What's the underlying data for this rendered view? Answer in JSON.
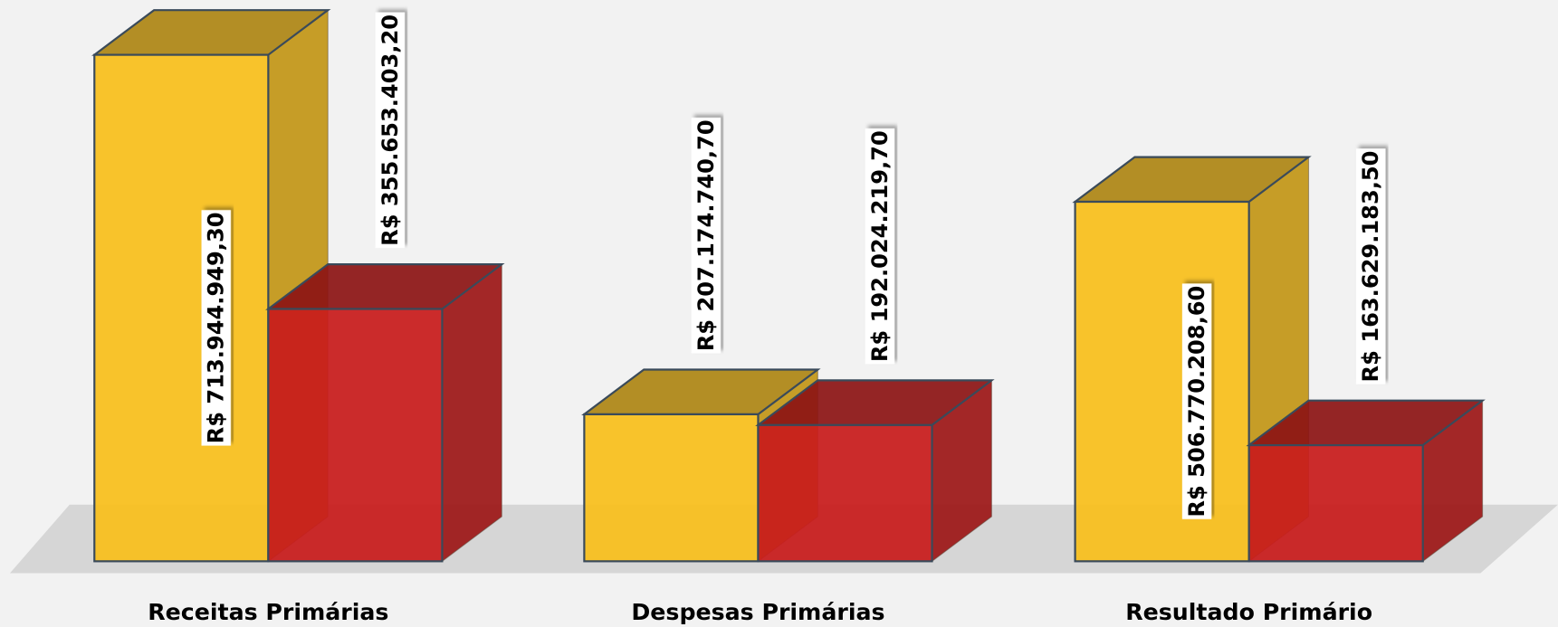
{
  "chart_data": {
    "type": "bar3d",
    "categories": [
      "Receitas Primárias",
      "Despesas Primárias",
      "Resultado Primário"
    ],
    "series": [
      {
        "color": "#f9c01c",
        "values": [
          713944949.3,
          207174740.7,
          506770208.6
        ],
        "value_labels": [
          "R$ 713.944.949,30",
          "R$ 207.174.740,70",
          "R$ 506.770.208,60"
        ]
      },
      {
        "color": "#c81c1c",
        "values": [
          355653403.2,
          192024219.7,
          163629183.5
        ],
        "value_labels": [
          "R$ 355.653.403,20",
          "R$ 192.024.219,70",
          "R$ 163.629.183,50"
        ]
      }
    ]
  }
}
